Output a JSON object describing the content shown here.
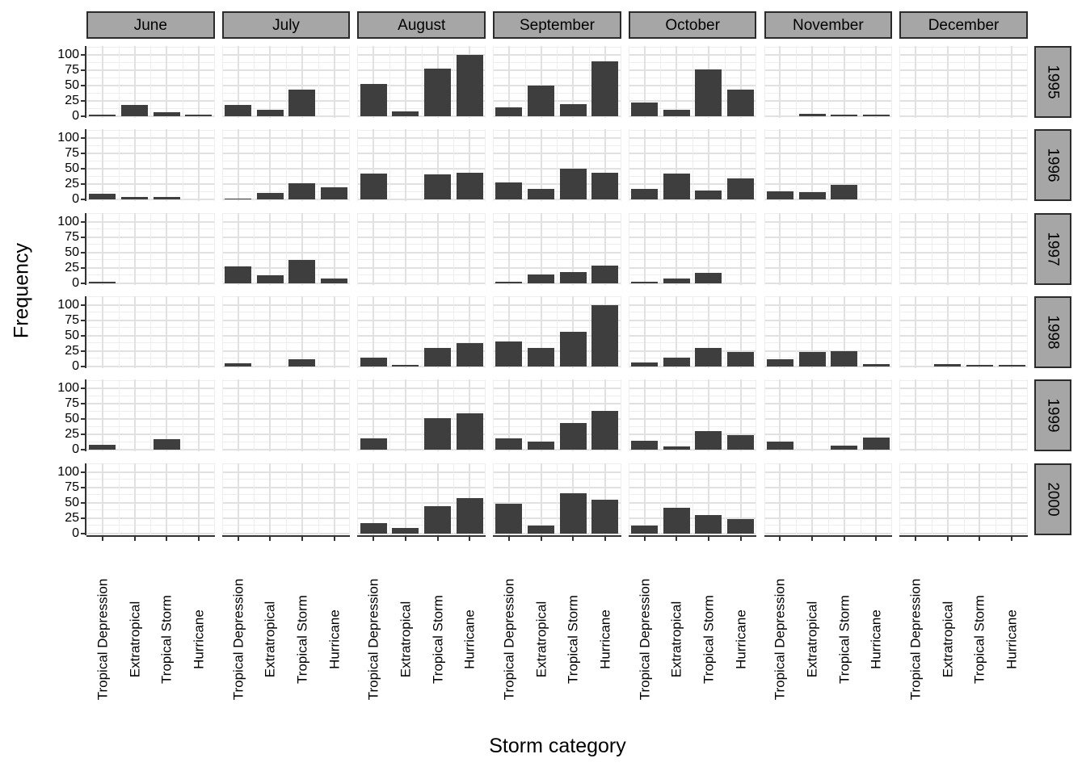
{
  "chart_data": {
    "type": "bar",
    "title": "",
    "xlabel": "Storm category",
    "ylabel": "Frequency",
    "facet_columns": [
      "June",
      "July",
      "August",
      "September",
      "October",
      "November",
      "December"
    ],
    "facet_rows": [
      "1995",
      "1996",
      "1997",
      "1998",
      "1999",
      "2000"
    ],
    "categories": [
      "Tropical Depression",
      "Extratropical",
      "Tropical Storm",
      "Hurricane"
    ],
    "y_ticks": [
      0,
      25,
      50,
      75,
      100
    ],
    "ylim": [
      0,
      112
    ],
    "grid": "major and minor horizontal and vertical, light gray on white",
    "legend": "none",
    "values": {
      "1995": {
        "June": [
          2,
          18,
          7,
          2
        ],
        "July": [
          18,
          11,
          43,
          0
        ],
        "August": [
          52,
          8,
          78,
          100
        ],
        "September": [
          15,
          50,
          20,
          89
        ],
        "October": [
          22,
          11,
          76,
          43
        ],
        "November": [
          0,
          4,
          2,
          2
        ],
        "December": [
          0,
          0,
          0,
          0
        ]
      },
      "1996": {
        "June": [
          9,
          5,
          4,
          0
        ],
        "July": [
          2,
          11,
          27,
          20
        ],
        "August": [
          43,
          0,
          41,
          44
        ],
        "September": [
          28,
          18,
          50,
          44
        ],
        "October": [
          18,
          42,
          15,
          35
        ],
        "November": [
          14,
          12,
          24,
          0
        ],
        "December": [
          0,
          0,
          0,
          0
        ]
      },
      "1997": {
        "June": [
          2,
          0,
          0,
          0
        ],
        "July": [
          27,
          12,
          37,
          8
        ],
        "August": [
          0,
          0,
          0,
          0
        ],
        "September": [
          2,
          14,
          18,
          28
        ],
        "October": [
          2,
          8,
          16,
          0
        ],
        "November": [
          0,
          0,
          0,
          0
        ],
        "December": [
          0,
          0,
          0,
          0
        ]
      },
      "1998": {
        "June": [
          0,
          0,
          0,
          0
        ],
        "July": [
          5,
          0,
          12,
          0
        ],
        "August": [
          14,
          2,
          30,
          38
        ],
        "September": [
          41,
          30,
          56,
          100
        ],
        "October": [
          6,
          14,
          30,
          24
        ],
        "November": [
          12,
          24,
          25,
          4
        ],
        "December": [
          0,
          4,
          1,
          1
        ]
      },
      "1999": {
        "June": [
          8,
          0,
          18,
          0
        ],
        "July": [
          0,
          0,
          0,
          0
        ],
        "August": [
          19,
          0,
          51,
          59
        ],
        "September": [
          19,
          14,
          44,
          64
        ],
        "October": [
          15,
          6,
          30,
          24
        ],
        "November": [
          13,
          0,
          7,
          20
        ],
        "December": [
          0,
          0,
          0,
          0
        ]
      },
      "2000": {
        "June": [
          0,
          0,
          0,
          0
        ],
        "July": [
          0,
          0,
          0,
          0
        ],
        "August": [
          16,
          9,
          44,
          57
        ],
        "September": [
          48,
          13,
          65,
          54
        ],
        "October": [
          13,
          42,
          30,
          23
        ],
        "November": [
          0,
          0,
          0,
          0
        ],
        "December": [
          0,
          0,
          0,
          0
        ]
      }
    }
  },
  "colors": {
    "bar": "#3e3e3e",
    "strip_bg": "#a6a6a6",
    "strip_border": "#2b2b2b",
    "grid_major": "#e1e1e1",
    "grid_minor": "#eeeeee",
    "axis_line": "#333333",
    "text": "#000000",
    "panel_bg": "#ffffff"
  }
}
